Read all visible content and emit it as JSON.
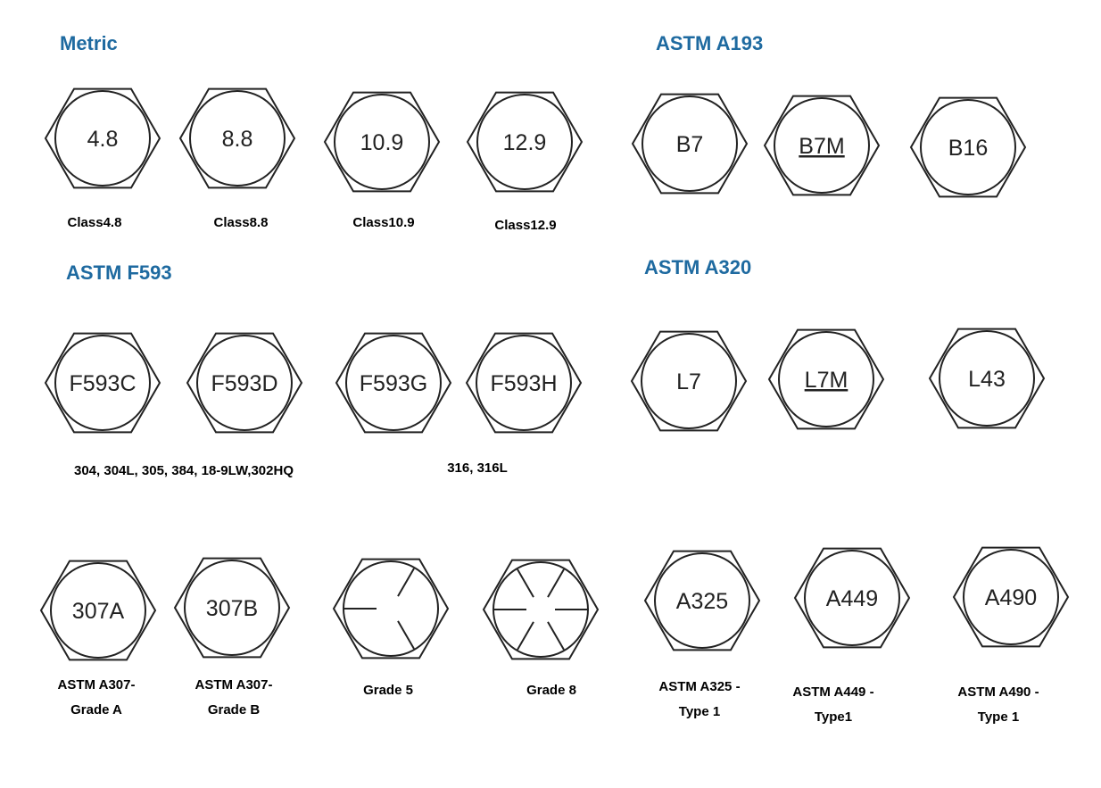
{
  "sections": {
    "metric": "Metric",
    "astm_a193": "ASTM A193",
    "astm_f593": "ASTM F593",
    "astm_a320": "ASTM A320"
  },
  "marks": [
    {
      "text": "4.8"
    },
    {
      "text": "8.8"
    },
    {
      "text": "10.9"
    },
    {
      "text": "12.9"
    },
    {
      "text": "B7"
    },
    {
      "text": "B7M",
      "underline": true
    },
    {
      "text": "B16"
    },
    {
      "text": "F593C"
    },
    {
      "text": "F593D"
    },
    {
      "text": "F593G"
    },
    {
      "text": "F593H"
    },
    {
      "text": "L7"
    },
    {
      "text": "L7M",
      "underline": true
    },
    {
      "text": "L43"
    },
    {
      "text": "307A"
    },
    {
      "text": "307B"
    },
    {
      "text": "",
      "symbol": "grade5-radial-lines"
    },
    {
      "text": "",
      "symbol": "grade8-radial-lines"
    },
    {
      "text": "A325"
    },
    {
      "text": "A449"
    },
    {
      "text": "A490"
    }
  ],
  "captions": {
    "class_4_8": [
      "Class4.8"
    ],
    "class_8_8": [
      "Class8.8"
    ],
    "class_10_9": [
      "Class10.9"
    ],
    "class_12_9": [
      "Class12.9"
    ],
    "f593_group_1": [
      "304, 304L, 305, 384, 18-9LW,302HQ"
    ],
    "f593_group_2": [
      "316, 316L"
    ],
    "a307_grade_a": [
      "ASTM A307-",
      "Grade A"
    ],
    "a307_grade_b": [
      "ASTM A307-",
      "Grade B"
    ],
    "grade_5": [
      "Grade 5"
    ],
    "grade_8": [
      "Grade 8"
    ],
    "a325_type_1": [
      "ASTM A325 -",
      "Type 1"
    ],
    "a449_type_1": [
      "ASTM A449 -",
      "Type1"
    ],
    "a490_type_1": [
      "ASTM A490 -",
      "Type 1"
    ]
  },
  "colors": {
    "heading": "#1e6aa0",
    "outline": "#222222",
    "caption": "#000000"
  }
}
